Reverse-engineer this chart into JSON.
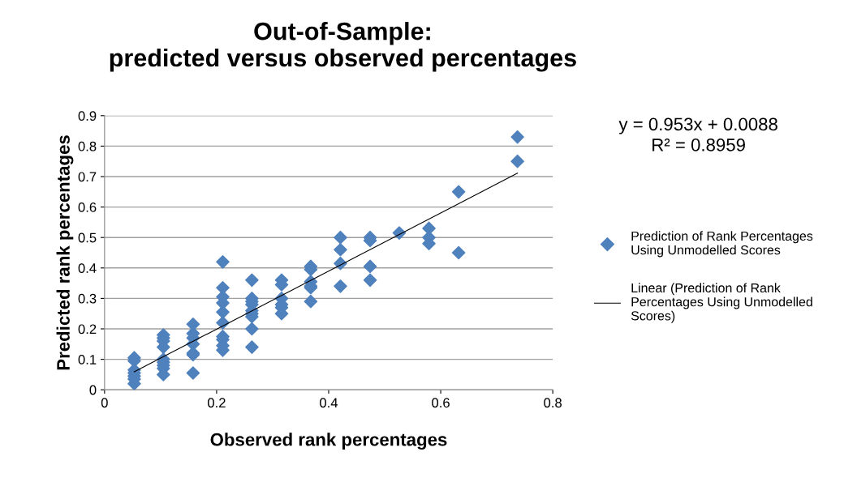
{
  "chart_data": {
    "type": "scatter",
    "title": "Out-of-Sample:\npredicted versus observed percentages",
    "xlabel": "Observed rank percentages",
    "ylabel": "Predicted rank percentages",
    "annotations": [
      "y = 0.953x + 0.0088",
      "R² = 0.8959"
    ],
    "series": [
      {
        "name": "Prediction of Rank Percentages\nUsing Unmodelled Scores",
        "color": "#4f81bd",
        "marker": "diamond",
        "x": [
          0.053,
          0.053,
          0.053,
          0.053,
          0.053,
          0.053,
          0.053,
          0.105,
          0.105,
          0.105,
          0.105,
          0.105,
          0.105,
          0.105,
          0.105,
          0.105,
          0.158,
          0.158,
          0.158,
          0.158,
          0.158,
          0.158,
          0.158,
          0.211,
          0.211,
          0.211,
          0.211,
          0.211,
          0.211,
          0.211,
          0.211,
          0.211,
          0.211,
          0.263,
          0.263,
          0.263,
          0.263,
          0.263,
          0.263,
          0.263,
          0.263,
          0.263,
          0.316,
          0.316,
          0.316,
          0.316,
          0.316,
          0.316,
          0.368,
          0.368,
          0.368,
          0.368,
          0.368,
          0.368,
          0.421,
          0.421,
          0.421,
          0.421,
          0.474,
          0.474,
          0.474,
          0.474,
          0.526,
          0.579,
          0.579,
          0.579,
          0.632,
          0.632,
          0.737,
          0.737
        ],
        "values": [
          0.105,
          0.095,
          0.065,
          0.055,
          0.045,
          0.035,
          0.02,
          0.18,
          0.17,
          0.16,
          0.14,
          0.1,
          0.09,
          0.08,
          0.07,
          0.05,
          0.215,
          0.185,
          0.17,
          0.15,
          0.12,
          0.115,
          0.055,
          0.42,
          0.335,
          0.305,
          0.285,
          0.255,
          0.22,
          0.175,
          0.165,
          0.145,
          0.13,
          0.36,
          0.3,
          0.29,
          0.28,
          0.26,
          0.25,
          0.24,
          0.2,
          0.14,
          0.36,
          0.345,
          0.3,
          0.28,
          0.27,
          0.25,
          0.405,
          0.395,
          0.355,
          0.34,
          0.335,
          0.29,
          0.5,
          0.46,
          0.415,
          0.34,
          0.5,
          0.49,
          0.405,
          0.36,
          0.515,
          0.53,
          0.5,
          0.48,
          0.65,
          0.45,
          0.83,
          0.75
        ]
      },
      {
        "name": "Linear (Prediction of Rank\nPercentages Using Unmodelled\nScores)",
        "type": "line",
        "color": "#000000",
        "marker": "none",
        "line_style": "solid",
        "x": [
          0.053,
          0.737
        ],
        "values": [
          0.059,
          0.711
        ]
      }
    ],
    "xlim": [
      0,
      0.8
    ],
    "xticks": [
      0,
      0.2,
      0.4,
      0.6,
      0.8
    ],
    "ylim": [
      0,
      0.9
    ],
    "yticks": [
      0,
      0.1,
      0.2,
      0.3,
      0.4,
      0.5,
      0.6,
      0.7,
      0.8,
      0.9
    ],
    "grid": "y",
    "legend": "right"
  }
}
